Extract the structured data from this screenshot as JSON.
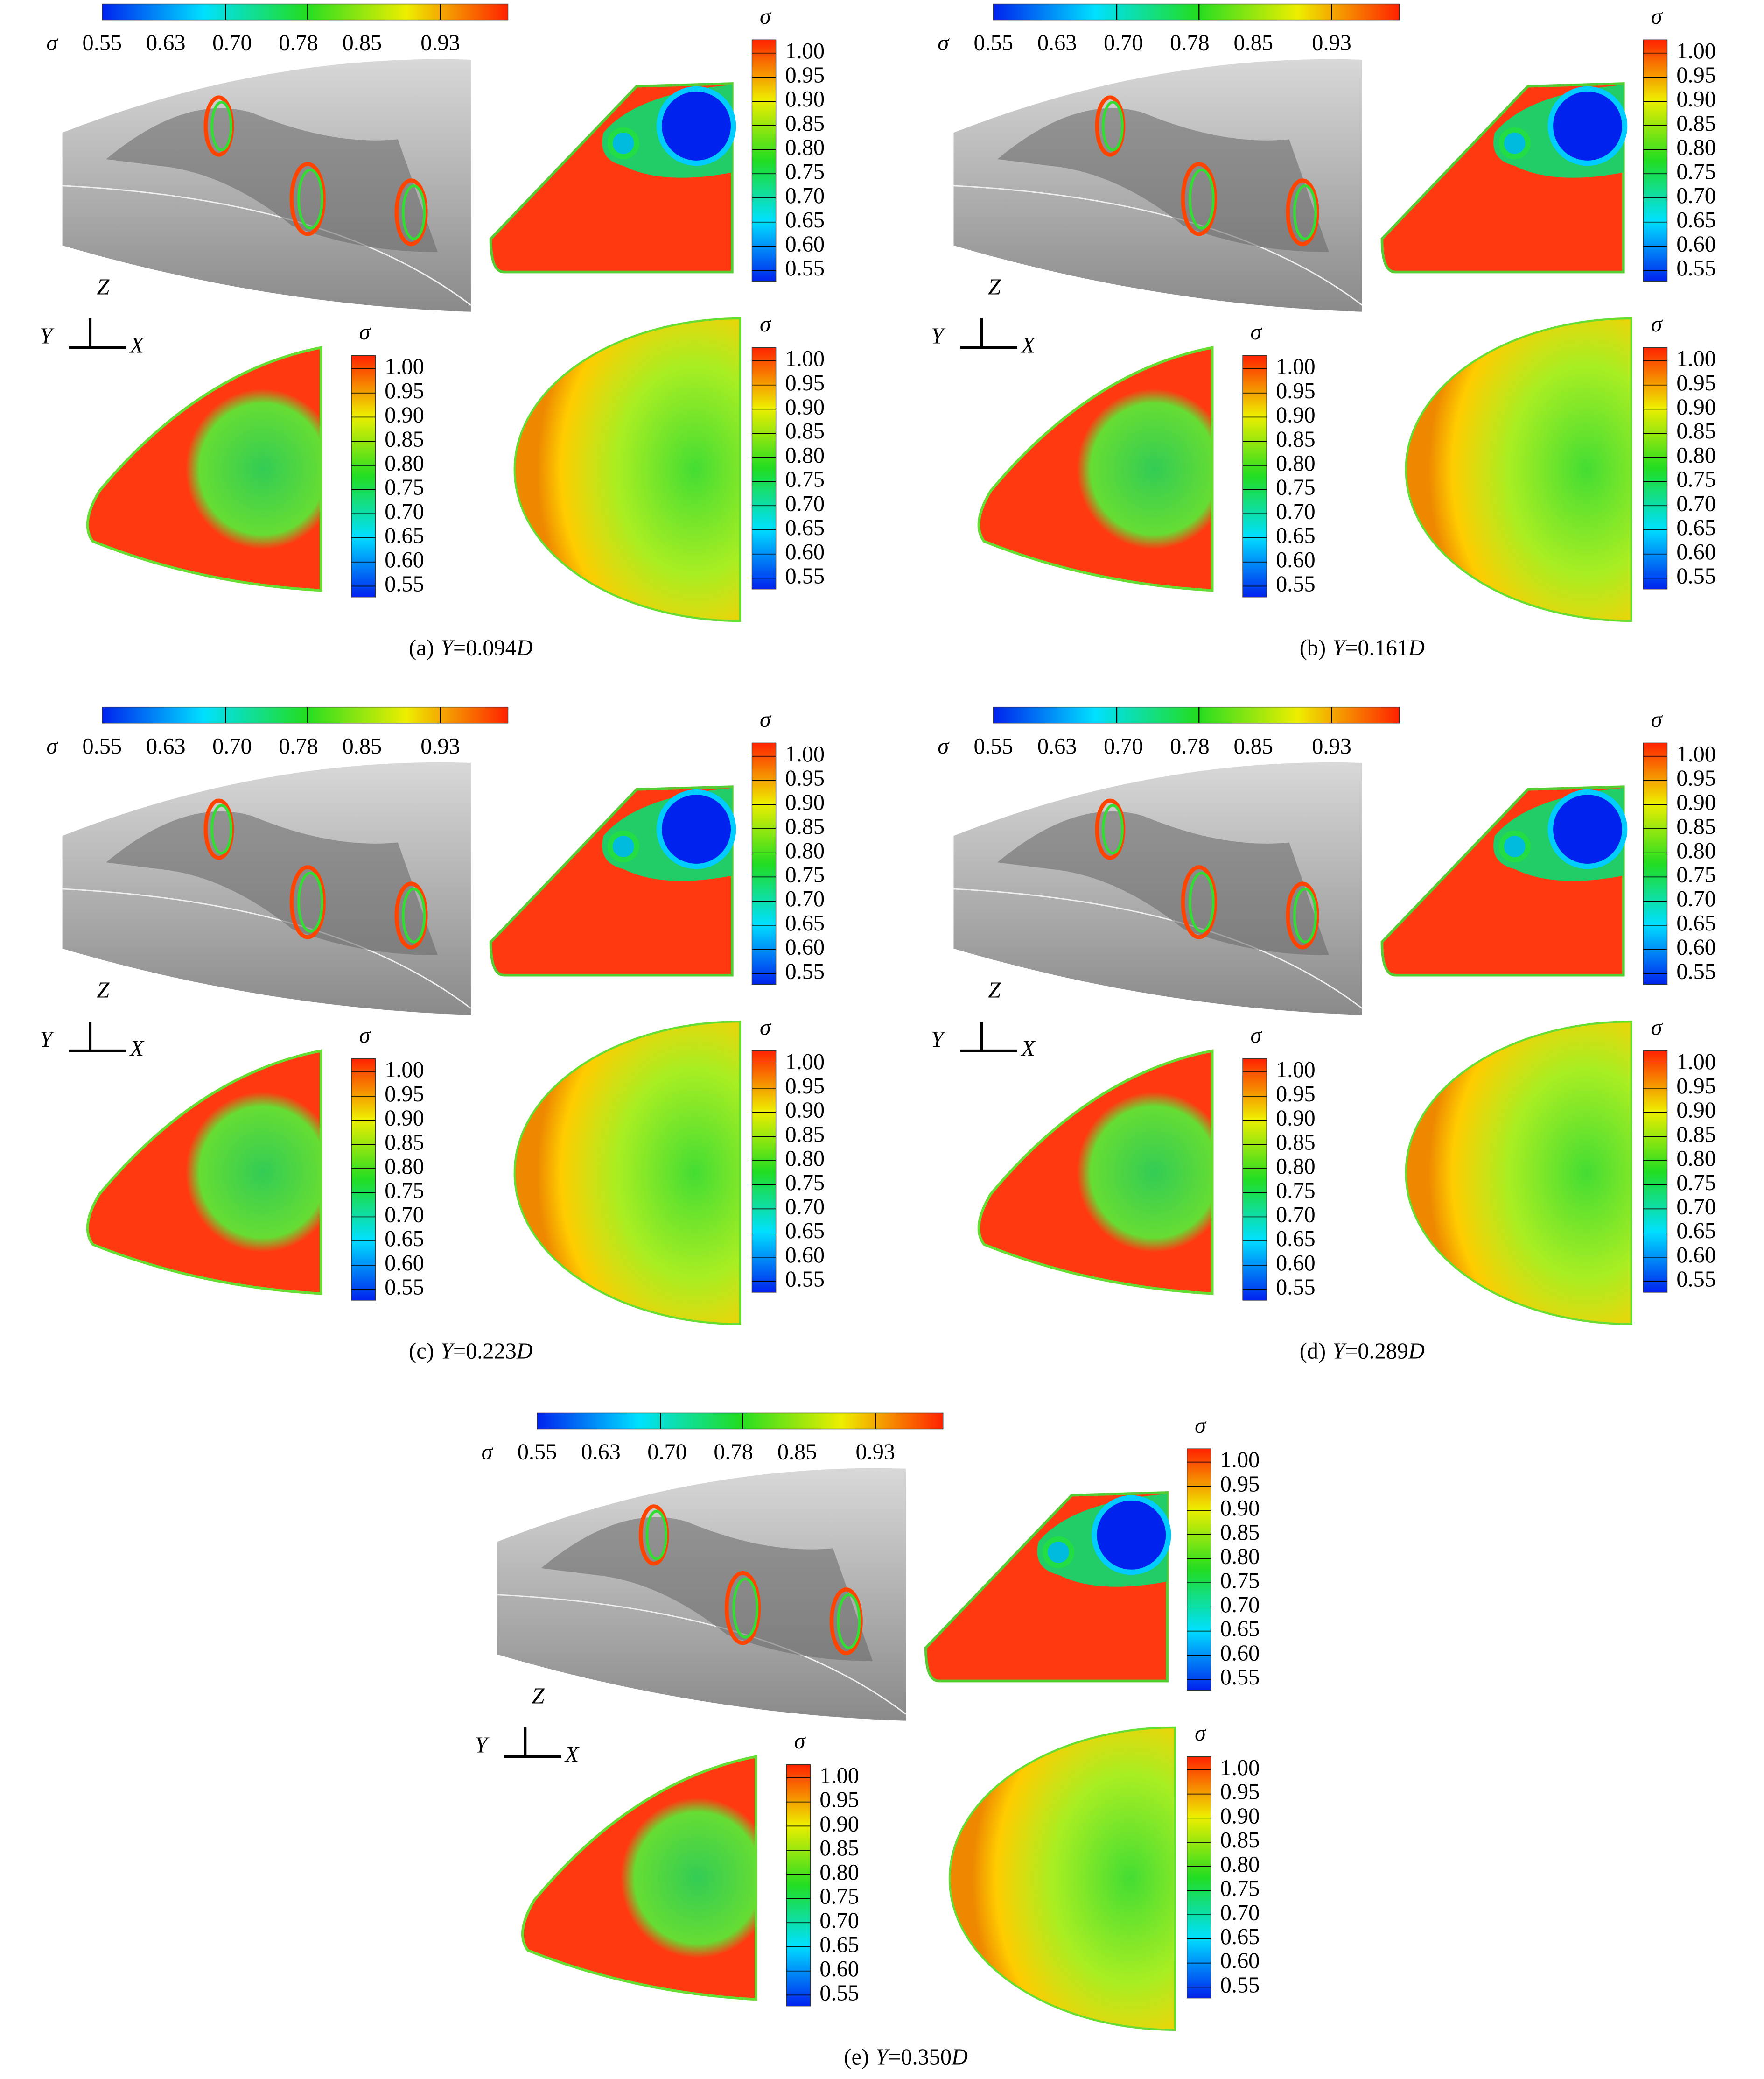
{
  "figure": {
    "symbol": "σ",
    "horizontal_colorbar_ticks": [
      "0.55",
      "0.63",
      "0.70",
      "0.78",
      "0.85",
      "0.93"
    ],
    "vertical_colorbar_ticks": [
      "1.00",
      "0.95",
      "0.90",
      "0.85",
      "0.80",
      "0.75",
      "0.70",
      "0.65",
      "0.60",
      "0.55"
    ],
    "axes": {
      "x": "X",
      "y": "Y",
      "z": "Z"
    },
    "panels": [
      {
        "label": "(a)",
        "variable": "Y",
        "value": "=0.094",
        "unit": "D"
      },
      {
        "label": "(b)",
        "variable": "Y",
        "value": "=0.161",
        "unit": "D"
      },
      {
        "label": "(c)",
        "variable": "Y",
        "value": "=0.223",
        "unit": "D"
      },
      {
        "label": "(d)",
        "variable": "Y",
        "value": "=0.289",
        "unit": "D"
      },
      {
        "label": "(e)",
        "variable": "Y",
        "value": "=0.350",
        "unit": "D"
      }
    ]
  }
}
